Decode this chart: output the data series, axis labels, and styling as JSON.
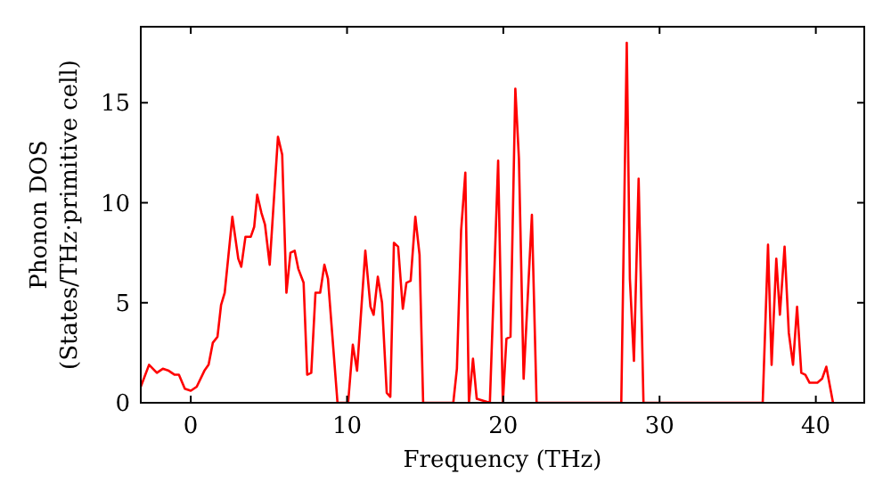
{
  "chart_data": {
    "type": "line",
    "xlabel": "Frequency (THz)",
    "ylabel": "Phonon DOS\n(States/THz·primitive cell)",
    "xlim": [
      -3.2,
      43.1
    ],
    "ylim": [
      0,
      18.8
    ],
    "xticks": [
      0,
      10,
      20,
      30,
      40
    ],
    "yticks": [
      0,
      5,
      10,
      15
    ],
    "grid": false,
    "series": [
      {
        "color": "#ff0000",
        "x": [
          -3.2,
          -2.67,
          -2.17,
          -1.79,
          -1.41,
          -1.03,
          -0.76,
          -0.38,
          0,
          0.38,
          0.87,
          1.14,
          1.41,
          1.71,
          1.94,
          2.17,
          2.66,
          3.04,
          3.23,
          3.5,
          3.84,
          4.06,
          4.25,
          4.52,
          4.75,
          5.05,
          5.58,
          5.85,
          6.12,
          6.38,
          6.65,
          6.88,
          7.22,
          7.45,
          7.71,
          7.98,
          8.28,
          8.55,
          8.78,
          9.39,
          10.07,
          10.37,
          10.64,
          11.17,
          11.5,
          11.7,
          11.97,
          12.24,
          12.54,
          12.77,
          13.0,
          13.27,
          13.57,
          13.8,
          14.07,
          14.37,
          14.64,
          14.87,
          16.8,
          17.03,
          17.3,
          17.57,
          17.8,
          18.06,
          18.3,
          19.14,
          19.67,
          19.97,
          20.2,
          20.46,
          20.77,
          21.0,
          21.3,
          21.83,
          22.13,
          27.55,
          27.9,
          28.1,
          28.36,
          28.66,
          28.97,
          36.6,
          36.94,
          37.17,
          37.47,
          37.7,
          38.0,
          38.27,
          38.54,
          38.8,
          39.07,
          39.33,
          39.6,
          40.1,
          40.4,
          40.67,
          41.1
        ],
        "values": [
          0.8,
          1.9,
          1.5,
          1.7,
          1.6,
          1.4,
          1.4,
          0.7,
          0.6,
          0.8,
          1.6,
          1.9,
          3,
          3.3,
          4.9,
          5.5,
          9.3,
          7.2,
          6.8,
          8.3,
          8.3,
          8.8,
          10.4,
          9.5,
          8.9,
          6.9,
          13.3,
          12.4,
          5.5,
          7.5,
          7.6,
          6.7,
          6,
          1.4,
          1.5,
          5.5,
          5.5,
          6.9,
          6.2,
          0,
          0,
          2.9,
          1.6,
          7.6,
          4.8,
          4.4,
          6.3,
          5,
          0.5,
          0.3,
          8,
          7.8,
          4.7,
          6,
          6.1,
          9.3,
          7.4,
          0,
          0,
          1.7,
          8.6,
          11.5,
          0,
          2.2,
          0.2,
          0,
          12.1,
          0,
          3.2,
          3.3,
          15.7,
          12.2,
          1.2,
          9.4,
          0,
          0,
          18,
          6.2,
          2.1,
          11.2,
          0,
          0,
          7.9,
          1.9,
          7.2,
          4.4,
          7.8,
          3.5,
          1.9,
          4.8,
          1.5,
          1.4,
          1,
          1,
          1.2,
          1.8,
          0
        ]
      }
    ]
  }
}
